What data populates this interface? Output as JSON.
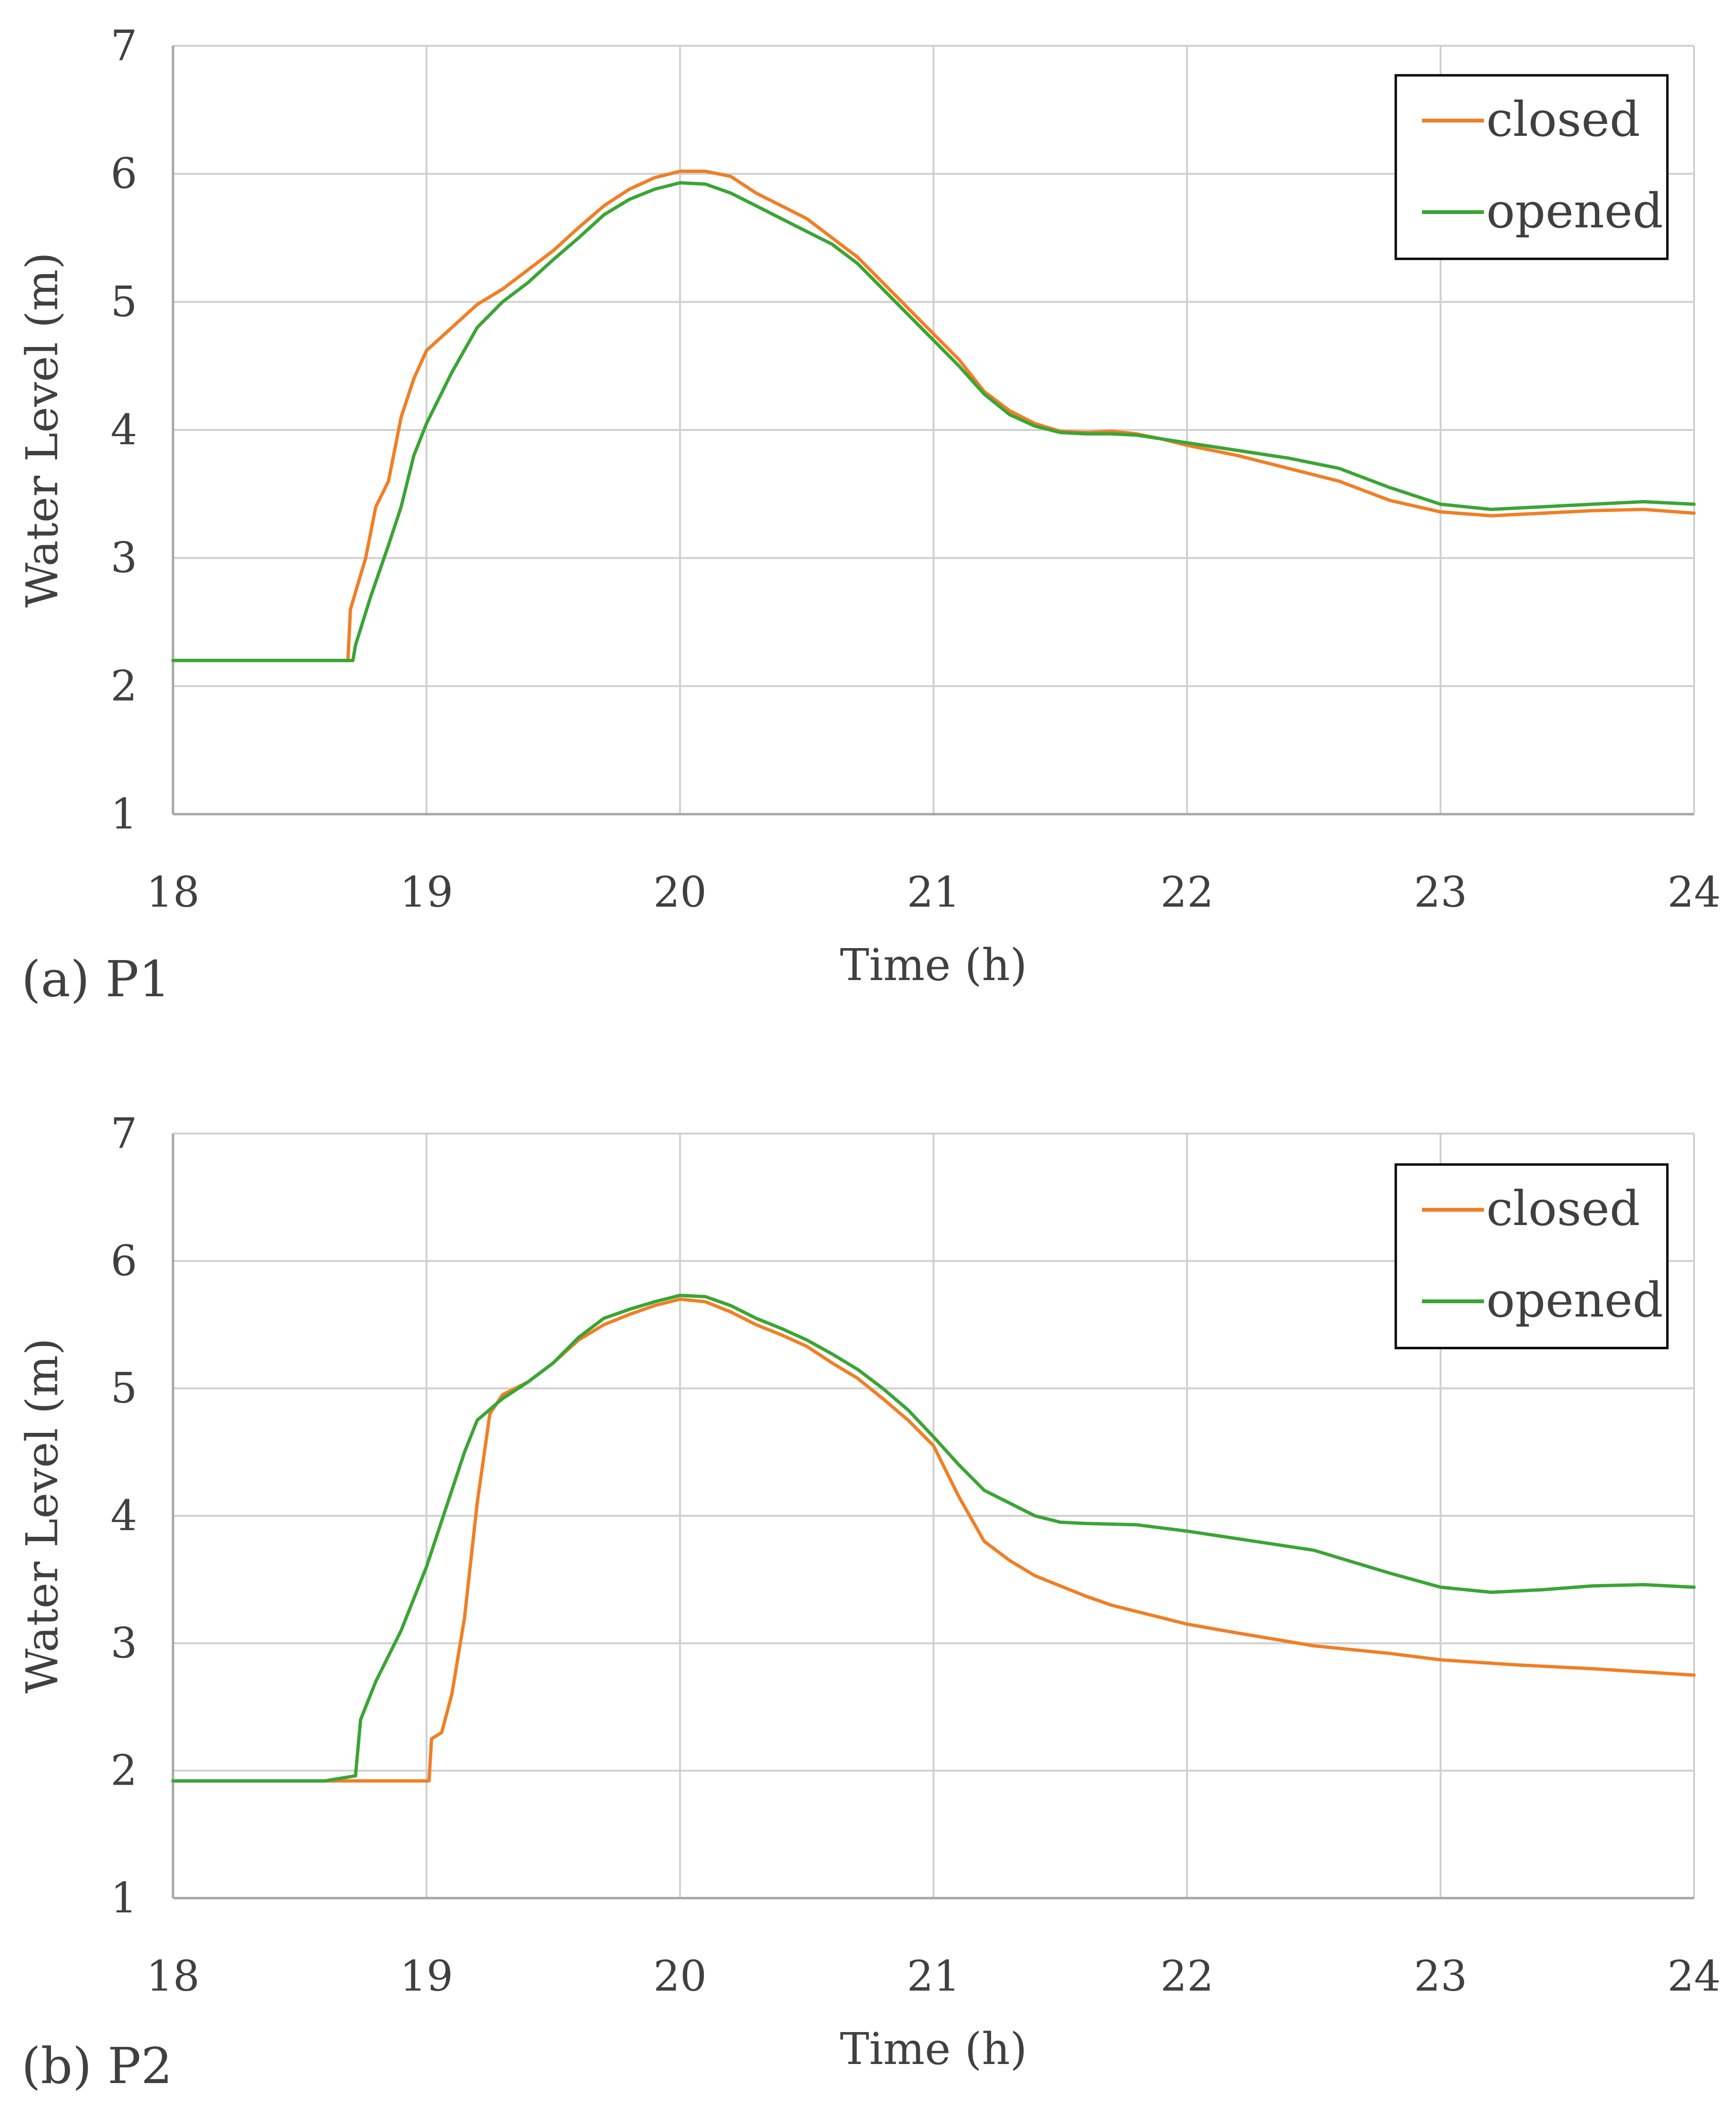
{
  "colors": {
    "closed": "#f07f26",
    "opened": "#3aa535",
    "text": "#404040"
  },
  "chart_data": [
    {
      "type": "line",
      "panel_label": "(a)  P1",
      "title": "",
      "xlabel": "Time (h)",
      "ylabel": "Water Level (m)",
      "xlim": [
        18,
        24
      ],
      "ylim": [
        1,
        7
      ],
      "xticks": [
        "18",
        "19",
        "20",
        "21",
        "22",
        "23",
        "24"
      ],
      "yticks": [
        "1",
        "2",
        "3",
        "4",
        "5",
        "6",
        "7"
      ],
      "grid": true,
      "legend_position": "top-right",
      "series": [
        {
          "name": "closed",
          "color_key": "closed",
          "points": [
            [
              18.0,
              2.2
            ],
            [
              18.69,
              2.2
            ],
            [
              18.7,
              2.6
            ],
            [
              18.76,
              3.0
            ],
            [
              18.8,
              3.4
            ],
            [
              18.85,
              3.6
            ],
            [
              18.9,
              4.1
            ],
            [
              18.95,
              4.4
            ],
            [
              19.0,
              4.62
            ],
            [
              19.1,
              4.8
            ],
            [
              19.2,
              4.98
            ],
            [
              19.3,
              5.1
            ],
            [
              19.4,
              5.25
            ],
            [
              19.5,
              5.4
            ],
            [
              19.6,
              5.58
            ],
            [
              19.7,
              5.75
            ],
            [
              19.8,
              5.88
            ],
            [
              19.9,
              5.97
            ],
            [
              20.0,
              6.02
            ],
            [
              20.1,
              6.02
            ],
            [
              20.2,
              5.98
            ],
            [
              20.3,
              5.85
            ],
            [
              20.4,
              5.75
            ],
            [
              20.5,
              5.65
            ],
            [
              20.6,
              5.5
            ],
            [
              20.7,
              5.35
            ],
            [
              20.8,
              5.15
            ],
            [
              20.9,
              4.95
            ],
            [
              21.0,
              4.75
            ],
            [
              21.1,
              4.55
            ],
            [
              21.2,
              4.3
            ],
            [
              21.3,
              4.15
            ],
            [
              21.4,
              4.05
            ],
            [
              21.5,
              3.99
            ],
            [
              21.6,
              3.98
            ],
            [
              21.7,
              3.99
            ],
            [
              21.8,
              3.97
            ],
            [
              21.9,
              3.93
            ],
            [
              22.0,
              3.88
            ],
            [
              22.2,
              3.8
            ],
            [
              22.4,
              3.7
            ],
            [
              22.6,
              3.6
            ],
            [
              22.8,
              3.45
            ],
            [
              23.0,
              3.36
            ],
            [
              23.2,
              3.33
            ],
            [
              23.4,
              3.35
            ],
            [
              23.6,
              3.37
            ],
            [
              23.8,
              3.38
            ],
            [
              24.0,
              3.35
            ]
          ]
        },
        {
          "name": "opened",
          "color_key": "opened",
          "points": [
            [
              18.0,
              2.2
            ],
            [
              18.71,
              2.2
            ],
            [
              18.72,
              2.32
            ],
            [
              18.78,
              2.7
            ],
            [
              18.85,
              3.1
            ],
            [
              18.9,
              3.4
            ],
            [
              18.95,
              3.8
            ],
            [
              19.0,
              4.05
            ],
            [
              19.1,
              4.45
            ],
            [
              19.2,
              4.8
            ],
            [
              19.3,
              5.0
            ],
            [
              19.4,
              5.15
            ],
            [
              19.5,
              5.33
            ],
            [
              19.6,
              5.5
            ],
            [
              19.7,
              5.68
            ],
            [
              19.8,
              5.8
            ],
            [
              19.9,
              5.88
            ],
            [
              20.0,
              5.93
            ],
            [
              20.1,
              5.92
            ],
            [
              20.2,
              5.85
            ],
            [
              20.3,
              5.75
            ],
            [
              20.4,
              5.65
            ],
            [
              20.5,
              5.55
            ],
            [
              20.6,
              5.45
            ],
            [
              20.7,
              5.3
            ],
            [
              20.8,
              5.1
            ],
            [
              20.9,
              4.9
            ],
            [
              21.0,
              4.7
            ],
            [
              21.1,
              4.5
            ],
            [
              21.2,
              4.28
            ],
            [
              21.3,
              4.12
            ],
            [
              21.4,
              4.03
            ],
            [
              21.5,
              3.98
            ],
            [
              21.6,
              3.97
            ],
            [
              21.7,
              3.97
            ],
            [
              21.8,
              3.96
            ],
            [
              21.9,
              3.93
            ],
            [
              22.0,
              3.9
            ],
            [
              22.2,
              3.84
            ],
            [
              22.4,
              3.78
            ],
            [
              22.6,
              3.7
            ],
            [
              22.8,
              3.55
            ],
            [
              23.0,
              3.42
            ],
            [
              23.2,
              3.38
            ],
            [
              23.4,
              3.4
            ],
            [
              23.6,
              3.42
            ],
            [
              23.8,
              3.44
            ],
            [
              24.0,
              3.42
            ]
          ]
        }
      ]
    },
    {
      "type": "line",
      "panel_label": "(b)  P2",
      "title": "",
      "xlabel": "Time (h)",
      "ylabel": "Water Level (m)",
      "xlim": [
        18,
        24
      ],
      "ylim": [
        1,
        7
      ],
      "xticks": [
        "18",
        "19",
        "20",
        "21",
        "22",
        "23",
        "24"
      ],
      "yticks": [
        "1",
        "2",
        "3",
        "4",
        "5",
        "6",
        "7"
      ],
      "grid": true,
      "legend_position": "top-right",
      "series": [
        {
          "name": "closed",
          "color_key": "closed",
          "points": [
            [
              18.0,
              1.92
            ],
            [
              19.01,
              1.92
            ],
            [
              19.02,
              2.25
            ],
            [
              19.06,
              2.3
            ],
            [
              19.1,
              2.6
            ],
            [
              19.15,
              3.2
            ],
            [
              19.2,
              4.1
            ],
            [
              19.25,
              4.8
            ],
            [
              19.3,
              4.95
            ],
            [
              19.4,
              5.05
            ],
            [
              19.5,
              5.2
            ],
            [
              19.6,
              5.38
            ],
            [
              19.7,
              5.5
            ],
            [
              19.8,
              5.58
            ],
            [
              19.9,
              5.65
            ],
            [
              20.0,
              5.7
            ],
            [
              20.1,
              5.68
            ],
            [
              20.2,
              5.6
            ],
            [
              20.3,
              5.5
            ],
            [
              20.4,
              5.42
            ],
            [
              20.5,
              5.33
            ],
            [
              20.6,
              5.2
            ],
            [
              20.7,
              5.08
            ],
            [
              20.8,
              4.92
            ],
            [
              20.9,
              4.75
            ],
            [
              21.0,
              4.55
            ],
            [
              21.1,
              4.15
            ],
            [
              21.2,
              3.8
            ],
            [
              21.3,
              3.65
            ],
            [
              21.4,
              3.53
            ],
            [
              21.5,
              3.45
            ],
            [
              21.6,
              3.37
            ],
            [
              21.7,
              3.3
            ],
            [
              21.8,
              3.25
            ],
            [
              22.0,
              3.15
            ],
            [
              22.2,
              3.08
            ],
            [
              22.5,
              2.98
            ],
            [
              22.8,
              2.92
            ],
            [
              23.0,
              2.87
            ],
            [
              23.3,
              2.83
            ],
            [
              23.6,
              2.8
            ],
            [
              24.0,
              2.75
            ]
          ]
        },
        {
          "name": "opened",
          "color_key": "opened",
          "points": [
            [
              18.0,
              1.92
            ],
            [
              18.6,
              1.92
            ],
            [
              18.72,
              1.96
            ],
            [
              18.74,
              2.4
            ],
            [
              18.8,
              2.7
            ],
            [
              18.9,
              3.1
            ],
            [
              19.0,
              3.6
            ],
            [
              19.05,
              3.9
            ],
            [
              19.1,
              4.2
            ],
            [
              19.15,
              4.5
            ],
            [
              19.2,
              4.75
            ],
            [
              19.3,
              4.92
            ],
            [
              19.4,
              5.05
            ],
            [
              19.5,
              5.2
            ],
            [
              19.6,
              5.4
            ],
            [
              19.7,
              5.55
            ],
            [
              19.8,
              5.62
            ],
            [
              19.9,
              5.68
            ],
            [
              20.0,
              5.73
            ],
            [
              20.1,
              5.72
            ],
            [
              20.2,
              5.65
            ],
            [
              20.3,
              5.55
            ],
            [
              20.4,
              5.47
            ],
            [
              20.5,
              5.38
            ],
            [
              20.6,
              5.27
            ],
            [
              20.7,
              5.15
            ],
            [
              20.8,
              5.0
            ],
            [
              20.9,
              4.83
            ],
            [
              21.0,
              4.62
            ],
            [
              21.1,
              4.4
            ],
            [
              21.2,
              4.2
            ],
            [
              21.3,
              4.1
            ],
            [
              21.4,
              4.0
            ],
            [
              21.5,
              3.95
            ],
            [
              21.6,
              3.94
            ],
            [
              21.8,
              3.93
            ],
            [
              22.0,
              3.88
            ],
            [
              22.2,
              3.82
            ],
            [
              22.5,
              3.73
            ],
            [
              22.8,
              3.55
            ],
            [
              23.0,
              3.44
            ],
            [
              23.2,
              3.4
            ],
            [
              23.4,
              3.42
            ],
            [
              23.6,
              3.45
            ],
            [
              23.8,
              3.46
            ],
            [
              24.0,
              3.44
            ]
          ]
        }
      ]
    }
  ]
}
